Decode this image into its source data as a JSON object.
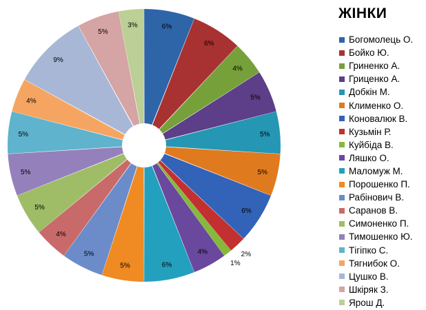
{
  "chart_data": {
    "type": "pie",
    "title": "ЖІНКИ",
    "exploded": true,
    "legend_position": "right",
    "categories": [
      "Богомолець О.",
      "Бойко Ю.",
      "Гриненко А.",
      "Гриценко А.",
      "Добкін  М.",
      "Клименко О.",
      "Коновалюк В.",
      "Кузьмін Р.",
      "Куйбіда В.",
      "Ляшко О.",
      "Маломуж М.",
      "Порошенко П.",
      "Рабінович  В.",
      "Саранов В.",
      "Симоненко П.",
      "Тимошенко Ю.",
      "Тігіпко  С.",
      "Тягнибок О.",
      "Цушко В.",
      "Шкіряк  З.",
      "Ярош Д."
    ],
    "values": [
      6,
      6,
      4,
      5,
      5,
      5,
      6,
      2,
      1,
      4,
      6,
      5,
      5,
      4,
      5,
      5,
      5,
      4,
      9,
      5,
      3
    ],
    "labels": [
      "6%",
      "6%",
      "4%",
      "5%",
      "5%",
      "5%",
      "6%",
      "2%",
      "1%",
      "4%",
      "6%",
      "5%",
      "5%",
      "4%",
      "5%",
      "5%",
      "5%",
      "4%",
      "9%",
      "5%",
      "3%"
    ],
    "colors": [
      "#2e64a8",
      "#a83232",
      "#76a03a",
      "#5c3f88",
      "#2596b3",
      "#e07a1f",
      "#3263b8",
      "#c33030",
      "#86b83c",
      "#6a489e",
      "#23a0be",
      "#f08a22",
      "#6c8cc9",
      "#c96a6a",
      "#9ebd66",
      "#9481bc",
      "#5fb3cc",
      "#f5a561",
      "#a8b7d6",
      "#d5a4a4",
      "#bccf96"
    ]
  }
}
